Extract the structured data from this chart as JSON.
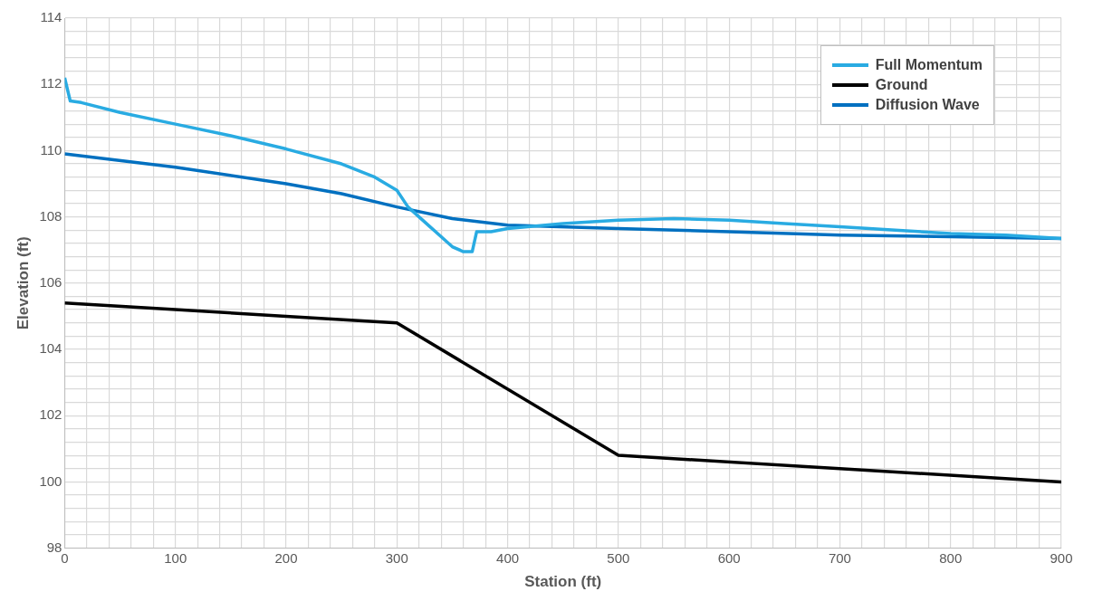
{
  "chart_data": {
    "type": "line",
    "xlabel": "Station (ft)",
    "ylabel": "Elevation (ft)",
    "xlim": [
      0,
      900
    ],
    "ylim": [
      98,
      114
    ],
    "xticks": [
      0,
      {
        "value": 20,
        "label": null
      },
      {
        "value": 40,
        "label": null
      },
      {
        "value": 60,
        "label": null
      },
      {
        "value": 80,
        "label": null
      },
      100,
      {
        "value": 120,
        "label": null
      },
      {
        "value": 140,
        "label": null
      },
      {
        "value": 160,
        "label": null
      },
      {
        "value": 180,
        "label": null
      },
      200,
      {
        "value": 220,
        "label": null
      },
      {
        "value": 240,
        "label": null
      },
      {
        "value": 260,
        "label": null
      },
      {
        "value": 280,
        "label": null
      },
      300,
      {
        "value": 320,
        "label": null
      },
      {
        "value": 340,
        "label": null
      },
      {
        "value": 360,
        "label": null
      },
      {
        "value": 380,
        "label": null
      },
      400,
      {
        "value": 420,
        "label": null
      },
      {
        "value": 440,
        "label": null
      },
      {
        "value": 460,
        "label": null
      },
      {
        "value": 480,
        "label": null
      },
      500,
      {
        "value": 520,
        "label": null
      },
      {
        "value": 540,
        "label": null
      },
      {
        "value": 560,
        "label": null
      },
      {
        "value": 580,
        "label": null
      },
      600,
      {
        "value": 620,
        "label": null
      },
      {
        "value": 640,
        "label": null
      },
      {
        "value": 660,
        "label": null
      },
      {
        "value": 680,
        "label": null
      },
      700,
      {
        "value": 720,
        "label": null
      },
      {
        "value": 740,
        "label": null
      },
      {
        "value": 760,
        "label": null
      },
      {
        "value": 780,
        "label": null
      },
      800,
      {
        "value": 820,
        "label": null
      },
      {
        "value": 840,
        "label": null
      },
      {
        "value": 860,
        "label": null
      },
      {
        "value": 880,
        "label": null
      },
      900
    ],
    "yticks": [
      98,
      {
        "value": 98.4,
        "label": null
      },
      {
        "value": 98.8,
        "label": null
      },
      {
        "value": 99.2,
        "label": null
      },
      {
        "value": 99.6,
        "label": null
      },
      100,
      {
        "value": 100.4,
        "label": null
      },
      {
        "value": 100.8,
        "label": null
      },
      {
        "value": 101.2,
        "label": null
      },
      {
        "value": 101.6,
        "label": null
      },
      102,
      {
        "value": 102.4,
        "label": null
      },
      {
        "value": 102.8,
        "label": null
      },
      {
        "value": 103.2,
        "label": null
      },
      {
        "value": 103.6,
        "label": null
      },
      104,
      {
        "value": 104.4,
        "label": null
      },
      {
        "value": 104.8,
        "label": null
      },
      {
        "value": 105.2,
        "label": null
      },
      {
        "value": 105.6,
        "label": null
      },
      106,
      {
        "value": 106.4,
        "label": null
      },
      {
        "value": 106.8,
        "label": null
      },
      {
        "value": 107.2,
        "label": null
      },
      {
        "value": 107.6,
        "label": null
      },
      108,
      {
        "value": 108.4,
        "label": null
      },
      {
        "value": 108.8,
        "label": null
      },
      {
        "value": 109.2,
        "label": null
      },
      {
        "value": 109.6,
        "label": null
      },
      110,
      {
        "value": 110.4,
        "label": null
      },
      {
        "value": 110.8,
        "label": null
      },
      {
        "value": 111.2,
        "label": null
      },
      {
        "value": 111.6,
        "label": null
      },
      112,
      {
        "value": 112.4,
        "label": null
      },
      {
        "value": 112.8,
        "label": null
      },
      {
        "value": 113.2,
        "label": null
      },
      {
        "value": 113.6,
        "label": null
      },
      114
    ],
    "grid": true,
    "legend": "top right",
    "marker": "none",
    "line_style": "solid",
    "series": [
      {
        "name": "Full Momentum",
        "color": "#29abe2",
        "x": [
          0,
          5,
          15,
          50,
          100,
          150,
          200,
          250,
          280,
          300,
          310,
          330,
          350,
          360,
          368,
          372,
          385,
          400,
          450,
          500,
          550,
          600,
          650,
          700,
          750,
          800,
          850,
          900
        ],
        "values": [
          112.2,
          111.5,
          111.45,
          111.15,
          110.8,
          110.45,
          110.05,
          109.6,
          109.2,
          108.8,
          108.3,
          107.7,
          107.1,
          106.95,
          106.95,
          107.55,
          107.55,
          107.65,
          107.8,
          107.9,
          107.95,
          107.9,
          107.8,
          107.7,
          107.6,
          107.5,
          107.45,
          107.35
        ]
      },
      {
        "name": "Ground",
        "color": "#000000",
        "x": [
          0,
          100,
          200,
          300,
          500,
          700,
          900
        ],
        "values": [
          105.4,
          105.2,
          105.0,
          104.8,
          100.8,
          100.4,
          100.0
        ]
      },
      {
        "name": "Diffusion Wave",
        "color": "#0070c0",
        "x": [
          0,
          100,
          200,
          250,
          300,
          350,
          400,
          500,
          600,
          700,
          800,
          900
        ],
        "values": [
          109.9,
          109.5,
          109.0,
          108.7,
          108.3,
          107.95,
          107.75,
          107.65,
          107.55,
          107.45,
          107.4,
          107.35
        ]
      }
    ]
  }
}
